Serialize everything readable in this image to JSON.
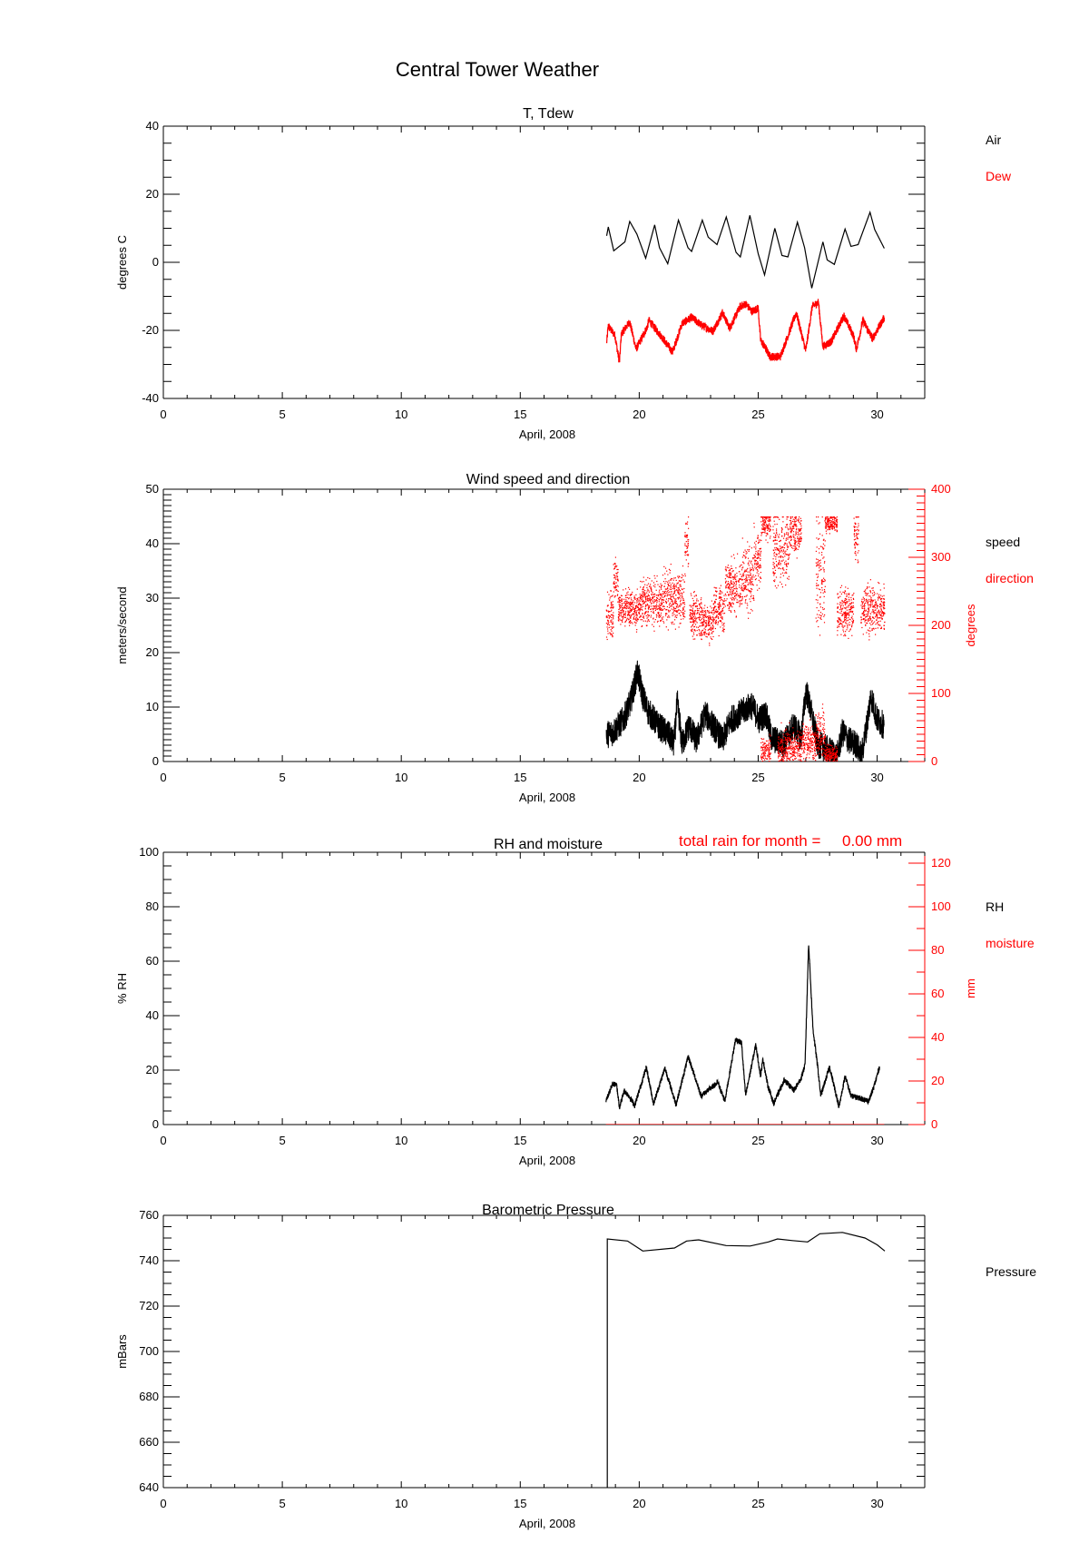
{
  "title": "Central Tower Weather",
  "rain_annotation": "total rain for month =     0.00 mm",
  "colors": {
    "primary": "#000000",
    "secondary": "#ff0000"
  },
  "chart_data": [
    {
      "type": "line",
      "title": "T, Tdew",
      "xlabel": "April, 2008",
      "ylabel": "degrees C",
      "xlim": [
        0,
        32
      ],
      "ylim": [
        -40,
        40
      ],
      "xticks": [
        "0",
        "5",
        "10",
        "15",
        "20",
        "25",
        "30"
      ],
      "yticks": [
        "-40",
        "-20",
        "0",
        "20",
        "40"
      ],
      "grid": false,
      "legend": "right",
      "series": [
        {
          "name": "Air",
          "color": "#000000",
          "points": [
            [
              18.63,
              7.8
            ],
            [
              18.7,
              10.4
            ],
            [
              18.93,
              3.4
            ],
            [
              19.4,
              6
            ],
            [
              19.6,
              12
            ],
            [
              19.9,
              8.3
            ],
            [
              20.27,
              1.2
            ],
            [
              20.65,
              11
            ],
            [
              20.85,
              4.3
            ],
            [
              21.2,
              -0.4
            ],
            [
              21.65,
              12.4
            ],
            [
              22.05,
              4.3
            ],
            [
              22.2,
              3.2
            ],
            [
              22.65,
              12.4
            ],
            [
              22.9,
              7.4
            ],
            [
              23.27,
              5.2
            ],
            [
              23.66,
              13.3
            ],
            [
              24.07,
              2.9
            ],
            [
              24.25,
              1.6
            ],
            [
              24.65,
              13.8
            ],
            [
              25,
              2.5
            ],
            [
              25.27,
              -3.7
            ],
            [
              25.7,
              10
            ],
            [
              26,
              2
            ],
            [
              26.25,
              1.6
            ],
            [
              26.65,
              11.8
            ],
            [
              26.95,
              4.3
            ],
            [
              27.25,
              -7.6
            ],
            [
              27.72,
              6
            ],
            [
              27.9,
              0.7
            ],
            [
              28.2,
              -0.6
            ],
            [
              28.65,
              9.8
            ],
            [
              28.9,
              4.7
            ],
            [
              29.2,
              5.2
            ],
            [
              29.7,
              14.7
            ],
            [
              29.9,
              9.6
            ],
            [
              30.3,
              4.1
            ]
          ]
        },
        {
          "name": "Dew",
          "color": "#ff0000",
          "points": [
            [
              18.63,
              -23.7
            ],
            [
              18.7,
              -18.8
            ],
            [
              18.98,
              -21.5
            ],
            [
              19.17,
              -29.5
            ],
            [
              19.25,
              -21
            ],
            [
              19.6,
              -17.5
            ],
            [
              19.87,
              -25.5
            ],
            [
              20.35,
              -18.8
            ],
            [
              20.4,
              -17
            ],
            [
              21,
              -22.4
            ],
            [
              21.4,
              -26.4
            ],
            [
              21.8,
              -18
            ],
            [
              22.2,
              -16.2
            ],
            [
              22.6,
              -18.4
            ],
            [
              23.1,
              -20.2
            ],
            [
              23.5,
              -14.8
            ],
            [
              23.8,
              -19.3
            ],
            [
              24.25,
              -13
            ],
            [
              24.47,
              -12.2
            ],
            [
              24.73,
              -14.4
            ],
            [
              25,
              -13.5
            ],
            [
              25.1,
              -22.8
            ],
            [
              25.5,
              -27.7
            ],
            [
              25.93,
              -27.7
            ],
            [
              26.28,
              -21
            ],
            [
              26.6,
              -14.8
            ],
            [
              27,
              -26
            ],
            [
              27.27,
              -13
            ],
            [
              27.53,
              -11.7
            ],
            [
              27.72,
              -24.7
            ],
            [
              28.07,
              -23.3
            ],
            [
              28.6,
              -15.7
            ],
            [
              29,
              -21.5
            ],
            [
              29.13,
              -25.5
            ],
            [
              29.4,
              -17
            ],
            [
              29.8,
              -22.4
            ],
            [
              30.3,
              -16.2
            ]
          ]
        }
      ]
    },
    {
      "type": "line+scatter",
      "title": "Wind speed and direction",
      "xlabel": "April, 2008",
      "ylabel": "meters/second",
      "y2label": "degrees",
      "xlim": [
        0,
        32
      ],
      "ylim": [
        0,
        50
      ],
      "y2lim": [
        0,
        400
      ],
      "xticks": [
        "0",
        "5",
        "10",
        "15",
        "20",
        "25",
        "30"
      ],
      "yticks": [
        "0",
        "10",
        "20",
        "30",
        "40",
        "50"
      ],
      "y2ticks": [
        "0",
        "100",
        "200",
        "300",
        "400"
      ],
      "grid": false,
      "legend": "right",
      "series": [
        {
          "name": "speed",
          "color": "#000000",
          "axis": "left",
          "points": [
            [
              18.61,
              4.9
            ],
            [
              18.9,
              5.4
            ],
            [
              19.34,
              7.7
            ],
            [
              19.64,
              11
            ],
            [
              19.93,
              16.5
            ],
            [
              20.15,
              12
            ],
            [
              20.36,
              9.3
            ],
            [
              20.8,
              6.6
            ],
            [
              21.24,
              4.9
            ],
            [
              21.46,
              3.2
            ],
            [
              21.6,
              11
            ],
            [
              21.8,
              3.2
            ],
            [
              22.1,
              6.6
            ],
            [
              22.4,
              3.8
            ],
            [
              22.77,
              8.8
            ],
            [
              23.1,
              6.6
            ],
            [
              23.5,
              3.8
            ],
            [
              23.85,
              7.7
            ],
            [
              24.4,
              9.3
            ],
            [
              24.7,
              10.4
            ],
            [
              25.04,
              7.7
            ],
            [
              25.33,
              8.8
            ],
            [
              25.55,
              4.3
            ],
            [
              26.06,
              3.2
            ],
            [
              26.5,
              6.6
            ],
            [
              26.8,
              4.3
            ],
            [
              27.01,
              13.2
            ],
            [
              27.24,
              8.8
            ],
            [
              27.5,
              3.2
            ],
            [
              27.96,
              2.1
            ],
            [
              28.32,
              1
            ],
            [
              28.54,
              5.4
            ],
            [
              28.83,
              3.8
            ],
            [
              29.12,
              3.2
            ],
            [
              29.34,
              1
            ],
            [
              29.56,
              6.6
            ],
            [
              29.74,
              12.1
            ],
            [
              30,
              7.7
            ],
            [
              30.29,
              6.6
            ]
          ]
        },
        {
          "name": "direction",
          "color": "#ff0000",
          "axis": "right",
          "type": "scatter",
          "clusters": [
            {
              "x": [
                18.6,
                18.9
              ],
              "center": 215,
              "spread": 25
            },
            {
              "x": [
                18.9,
                19.1
              ],
              "center": 270,
              "spread": 25
            },
            {
              "x": [
                19.1,
                20.0
              ],
              "center": 225,
              "spread": 20
            },
            {
              "x": [
                20.0,
                21.0
              ],
              "center": 235,
              "spread": 25
            },
            {
              "x": [
                21.0,
                21.9
              ],
              "center": 240,
              "spread": 30
            },
            {
              "x": [
                21.9,
                22.05
              ],
              "center": 320,
              "spread": 30
            },
            {
              "x": [
                22.1,
                22.6
              ],
              "center": 215,
              "spread": 25
            },
            {
              "x": [
                22.6,
                23.1
              ],
              "center": 205,
              "spread": 20
            },
            {
              "x": [
                23.1,
                23.6
              ],
              "center": 225,
              "spread": 25
            },
            {
              "x": [
                23.6,
                24.3
              ],
              "center": 255,
              "spread": 30
            },
            {
              "x": [
                24.3,
                24.8
              ],
              "center": 270,
              "spread": 35
            },
            {
              "x": [
                24.8,
                25.1
              ],
              "center": 300,
              "spread": 30
            },
            {
              "x": [
                25.1,
                25.5
              ],
              "center": 350,
              "spread": 15
            },
            {
              "x": [
                25.1,
                25.5
              ],
              "center": 15,
              "spread": 15
            },
            {
              "x": [
                25.6,
                26.3
              ],
              "center": 310,
              "spread": 40
            },
            {
              "x": [
                26.3,
                26.8
              ],
              "center": 340,
              "spread": 25
            },
            {
              "x": [
                25.8,
                26.8
              ],
              "center": 20,
              "spread": 20
            },
            {
              "x": [
                26.8,
                27.4
              ],
              "center": 30,
              "spread": 20
            },
            {
              "x": [
                27.4,
                27.8
              ],
              "center": 280,
              "spread": 60
            },
            {
              "x": [
                27.4,
                27.8
              ],
              "center": 40,
              "spread": 30
            },
            {
              "x": [
                27.8,
                28.3
              ],
              "center": 350,
              "spread": 10
            },
            {
              "x": [
                27.8,
                28.3
              ],
              "center": 10,
              "spread": 10
            },
            {
              "x": [
                28.3,
                29.0
              ],
              "center": 220,
              "spread": 25
            },
            {
              "x": [
                29.0,
                29.2
              ],
              "center": 330,
              "spread": 30
            },
            {
              "x": [
                29.3,
                30.3
              ],
              "center": 225,
              "spread": 25
            }
          ]
        }
      ]
    },
    {
      "type": "line",
      "title": "RH and moisture",
      "xlabel": "April, 2008",
      "ylabel": "% RH",
      "y2label": "mm",
      "xlim": [
        0,
        32
      ],
      "ylim": [
        0,
        100
      ],
      "y2lim": [
        0,
        125
      ],
      "xticks": [
        "0",
        "5",
        "10",
        "15",
        "20",
        "25",
        "30"
      ],
      "yticks": [
        "0",
        "20",
        "40",
        "60",
        "80",
        "100"
      ],
      "y2ticks": [
        "0",
        "20",
        "40",
        "60",
        "80",
        "100",
        "120"
      ],
      "grid": false,
      "legend": "right",
      "series": [
        {
          "name": "RH",
          "color": "#000000",
          "axis": "left",
          "points": [
            [
              18.6,
              8.6
            ],
            [
              18.88,
              15
            ],
            [
              19.05,
              14.5
            ],
            [
              19.17,
              6.4
            ],
            [
              19.37,
              12.4
            ],
            [
              19.56,
              10.6
            ],
            [
              19.81,
              7
            ],
            [
              20.3,
              21
            ],
            [
              20.6,
              7.7
            ],
            [
              21.08,
              20.7
            ],
            [
              21.55,
              7.4
            ],
            [
              22.06,
              25
            ],
            [
              22.6,
              10.6
            ],
            [
              23.3,
              15.4
            ],
            [
              23.6,
              8.7
            ],
            [
              24.05,
              31.3
            ],
            [
              24.3,
              30
            ],
            [
              24.47,
              10.6
            ],
            [
              24.9,
              29.4
            ],
            [
              25.1,
              17.8
            ],
            [
              25.2,
              24
            ],
            [
              25.4,
              14.5
            ],
            [
              25.65,
              7.7
            ],
            [
              26.1,
              16.4
            ],
            [
              26.5,
              12.5
            ],
            [
              26.8,
              16.9
            ],
            [
              26.97,
              21.9
            ],
            [
              27.12,
              66.7
            ],
            [
              27.3,
              35.4
            ],
            [
              27.5,
              21.2
            ],
            [
              27.63,
              10.6
            ],
            [
              28,
              21.2
            ],
            [
              28.4,
              6.4
            ],
            [
              28.65,
              17.8
            ],
            [
              28.9,
              10.6
            ],
            [
              29.3,
              9.6
            ],
            [
              29.65,
              8.7
            ],
            [
              29.85,
              13.5
            ],
            [
              30.1,
              21.2
            ]
          ]
        },
        {
          "name": "moisture",
          "color": "#ff0000",
          "axis": "right",
          "points": [
            [
              18.6,
              0
            ],
            [
              30.3,
              0
            ]
          ]
        }
      ]
    },
    {
      "type": "line",
      "title": "Barometric Pressure",
      "xlabel": "April, 2008",
      "ylabel": "mBars",
      "xlim": [
        0,
        32
      ],
      "ylim": [
        640,
        760
      ],
      "xticks": [
        "0",
        "5",
        "10",
        "15",
        "20",
        "25",
        "30"
      ],
      "yticks": [
        "640",
        "660",
        "680",
        "700",
        "720",
        "740",
        "760"
      ],
      "grid": false,
      "legend": "right",
      "series": [
        {
          "name": "Pressure",
          "color": "#000000",
          "points": [
            [
              18.66,
              640
            ],
            [
              18.66,
              749.6
            ],
            [
              19.51,
              748.7
            ],
            [
              20.15,
              744.3
            ],
            [
              21.48,
              745.6
            ],
            [
              21.99,
              748.7
            ],
            [
              22.5,
              749.2
            ],
            [
              23.65,
              746.7
            ],
            [
              24.66,
              746.5
            ],
            [
              25.43,
              748.3
            ],
            [
              25.81,
              749.6
            ],
            [
              26.44,
              748.9
            ],
            [
              27.08,
              748.3
            ],
            [
              27.59,
              751.9
            ],
            [
              28.54,
              752.5
            ],
            [
              29.49,
              750
            ],
            [
              30,
              747
            ],
            [
              30.32,
              744.3
            ]
          ]
        }
      ]
    }
  ]
}
